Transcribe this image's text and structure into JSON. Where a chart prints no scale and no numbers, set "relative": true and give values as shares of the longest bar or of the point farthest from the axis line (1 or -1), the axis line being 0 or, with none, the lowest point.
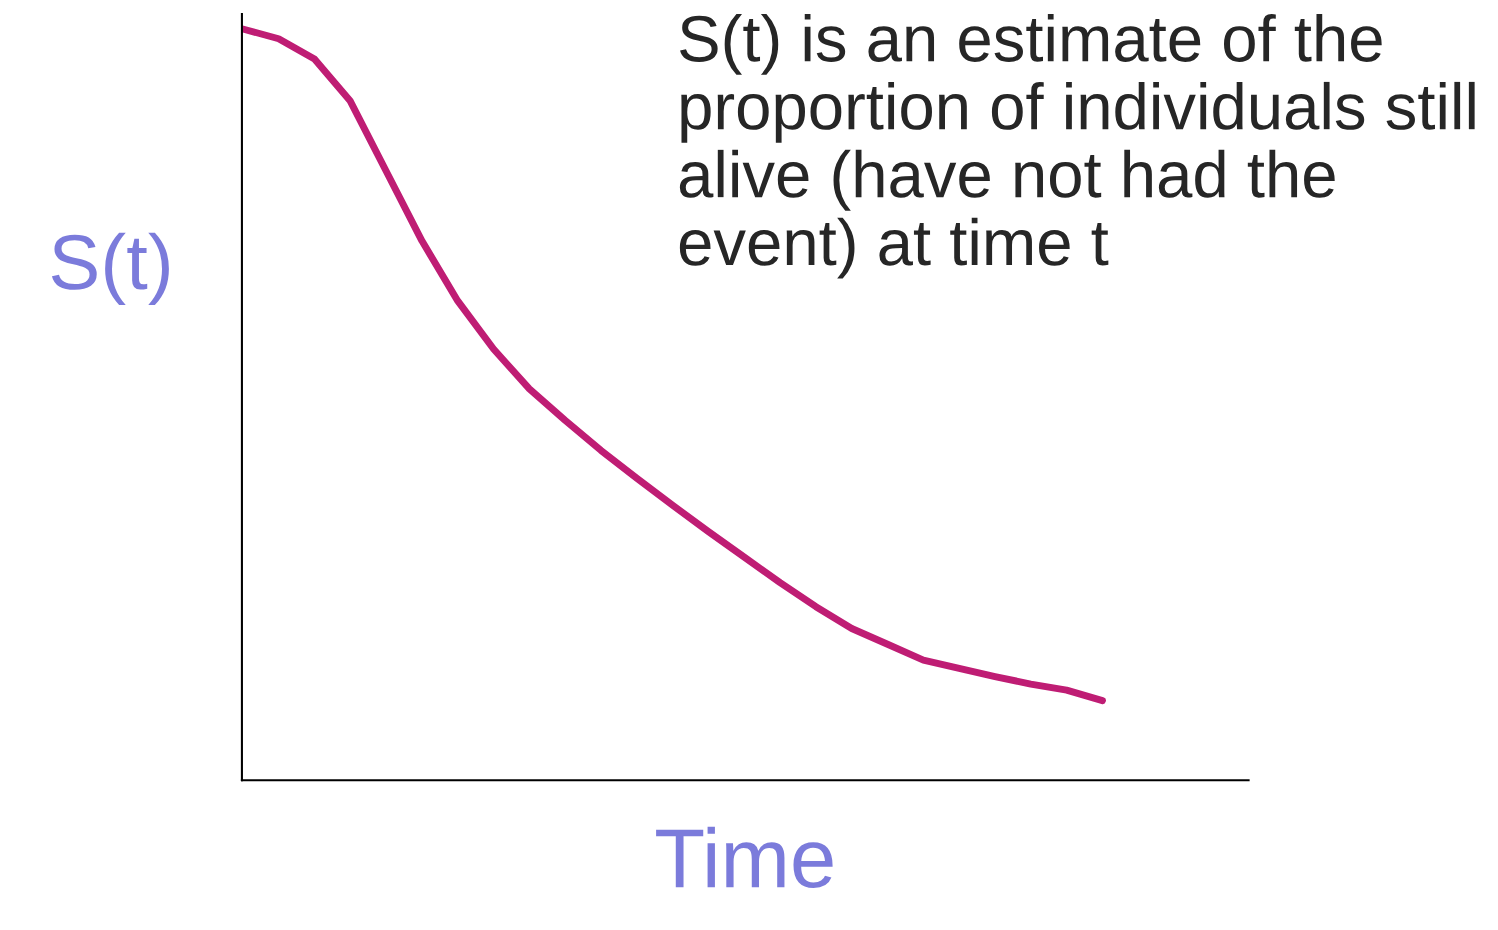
{
  "chart_data": {
    "type": "line",
    "relative": true,
    "xlabel": "Time",
    "ylabel": "S(t)",
    "annotations": [
      "S(t) is an estimate of the proportion of individuals still alive (have not had the event) at time t"
    ],
    "categories": [
      null,
      null,
      null,
      null,
      null,
      null,
      null,
      null,
      null,
      null,
      null,
      null,
      null,
      null,
      null,
      null,
      null,
      null,
      null,
      null,
      null,
      null,
      null,
      null,
      null
    ],
    "series": [
      {
        "color": "#bf1d74",
        "values": [
          1.0,
          0.987,
          0.96,
          0.904,
          0.811,
          0.718,
          0.638,
          0.574,
          0.521,
          0.479,
          0.439,
          0.402,
          0.366,
          0.331,
          0.297,
          0.263,
          0.231,
          0.202,
          0.181,
          0.16,
          0.149,
          0.138,
          0.128,
          0.12,
          0.106
        ]
      }
    ],
    "grid": false,
    "legend": false,
    "marker": "none",
    "line_style": "solid"
  }
}
